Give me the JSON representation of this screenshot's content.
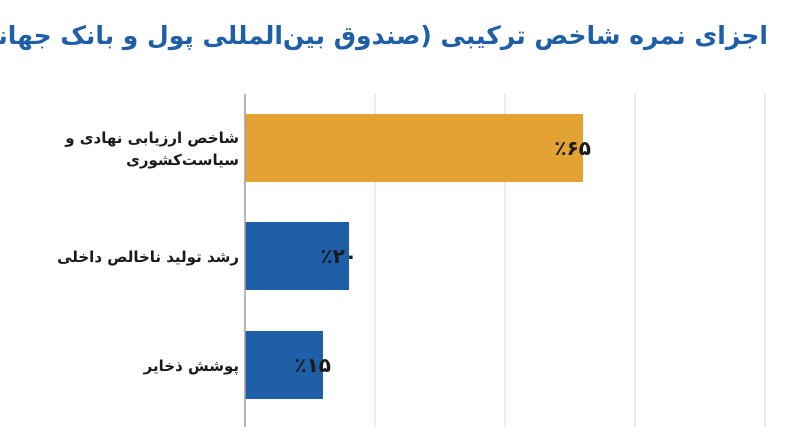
{
  "colors": {
    "title": "#1f5fa8",
    "highlight_bar": "#e3a234",
    "bar": "#1f5fa8",
    "grid": "#d4d4d4",
    "axis": "#9e9e9e"
  },
  "chart_data": {
    "type": "bar",
    "orientation": "horizontal",
    "title": "اجزای نمره شاخص ترکیبی (صندوق بین‌المللی پول و بانک جهانی)",
    "categories": [
      [
        "شاخص ارزیابی نهادی و",
        "سیاست‌کشوری"
      ],
      [
        "رشد تولید ناخالص داخلی"
      ],
      [
        "پوشش ذخایر"
      ]
    ],
    "values": [
      65,
      20,
      15
    ],
    "value_labels": [
      "٪۶۵",
      "٪۲۰",
      "٪۱۵"
    ],
    "xlim": [
      0,
      100
    ],
    "grid": true,
    "legend": "none"
  }
}
